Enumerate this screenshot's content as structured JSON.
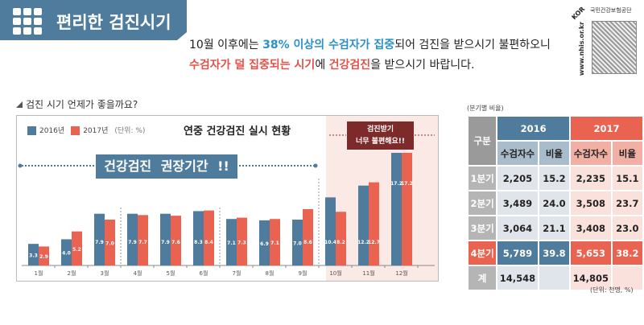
{
  "header": {
    "title": "편리한 검진시기",
    "icon": "checklist-grid-icon"
  },
  "intro": {
    "l1a": "10월 이후에는 ",
    "l1b": "38% 이상의 수검자가 집중",
    "l1c": "되어 검진을 받으시기 불편하오니",
    "l2a": "수검자가 덜 집중되는 시기",
    "l2b": "에 ",
    "l2c": "건강검진",
    "l2d": "을 받으시기 바랍니다."
  },
  "logo": {
    "org": "국민건강보험공단",
    "url": "www.nhis.or.kr",
    "mark": "KOR"
  },
  "question": "검진 시기 언제가 좋을까요?",
  "colors": {
    "y2016": "#4f7c9c",
    "y2017": "#ea6351",
    "banner": "#4f7c9c",
    "warn": "#7c2a2a"
  },
  "chart_data": {
    "type": "bar",
    "title": "연중 건강검진 실시 현황",
    "unit": "(단위: %)",
    "categories": [
      "1월",
      "2월",
      "3월",
      "4월",
      "5월",
      "6월",
      "7월",
      "8월",
      "9월",
      "10월",
      "11월",
      "12월"
    ],
    "series": [
      {
        "name": "2016년",
        "values": [
          3.3,
          4.0,
          7.9,
          7.9,
          7.9,
          8.3,
          7.1,
          6.9,
          7.0,
          10.4,
          12.2,
          17.2
        ]
      },
      {
        "name": "2017년",
        "values": [
          2.9,
          5.2,
          7.0,
          7.7,
          7.6,
          8.4,
          7.3,
          7.1,
          8.6,
          8.2,
          12.7,
          17.2
        ]
      }
    ],
    "ylim": [
      0,
      17.2
    ],
    "annotations": {
      "recommended": "건강검진  권장기간 !!",
      "warn1": "검진받기",
      "warn2": "너무 불편해요!!"
    }
  },
  "table": {
    "caption": "(분기별 비율)",
    "unit": "(단위: 천명, %)",
    "corner": "구분",
    "years": [
      "2016",
      "2017"
    ],
    "subheads": [
      "수검자수",
      "비율",
      "수검자수",
      "비율"
    ],
    "rows": [
      {
        "label": "1분기",
        "cells": [
          "2,205",
          "15.2",
          "2,235",
          "15.1"
        ]
      },
      {
        "label": "2분기",
        "cells": [
          "3,489",
          "24.0",
          "3,508",
          "23.7"
        ]
      },
      {
        "label": "3분기",
        "cells": [
          "3,064",
          "21.1",
          "3,408",
          "23.0"
        ]
      },
      {
        "label": "4분기",
        "cells": [
          "5,789",
          "39.8",
          "5,653",
          "38.2"
        ]
      },
      {
        "label": "계",
        "cells": [
          "14,548",
          "",
          "14,805",
          ""
        ]
      }
    ]
  }
}
